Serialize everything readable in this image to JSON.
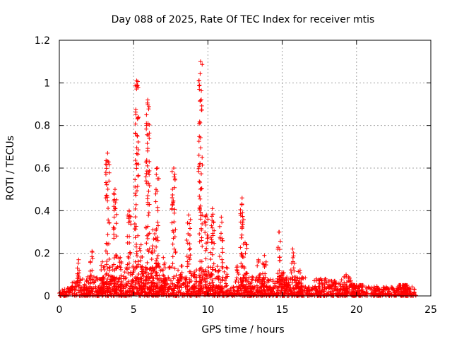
{
  "chart_data": {
    "type": "scatter",
    "title": "Day 088 of 2025, Rate Of TEC Index for receiver mtis",
    "xlabel": "GPS time / hours",
    "ylabel": "ROTI / TECUs",
    "xlim": [
      0,
      25
    ],
    "ylim": [
      0,
      1.2
    ],
    "xticks": [
      "0",
      "5",
      "10",
      "15",
      "20",
      "25"
    ],
    "yticks": [
      "0",
      "0.2",
      "0.4",
      "0.6",
      "0.8",
      "1",
      "1.2"
    ],
    "grid": true,
    "marker": "plus",
    "color": "#ff0000",
    "baseline_noise": {
      "x_range": [
        0,
        24
      ],
      "y_range": [
        0.0,
        0.045
      ]
    },
    "spikes": [
      {
        "x": 1.3,
        "peak": 0.17
      },
      {
        "x": 2.2,
        "peak": 0.21
      },
      {
        "x": 2.9,
        "peak": 0.16
      },
      {
        "x": 3.25,
        "peak": 0.67
      },
      {
        "x": 3.75,
        "peak": 0.5
      },
      {
        "x": 4.1,
        "peak": 0.18
      },
      {
        "x": 4.7,
        "peak": 0.4
      },
      {
        "x": 5.2,
        "peak": 1.01
      },
      {
        "x": 5.5,
        "peak": 0.24
      },
      {
        "x": 5.95,
        "peak": 0.92
      },
      {
        "x": 6.3,
        "peak": 0.31
      },
      {
        "x": 6.6,
        "peak": 0.6
      },
      {
        "x": 7.0,
        "peak": 0.18
      },
      {
        "x": 7.7,
        "peak": 0.6
      },
      {
        "x": 8.2,
        "peak": 0.14
      },
      {
        "x": 8.7,
        "peak": 0.38
      },
      {
        "x": 9.5,
        "peak": 1.1
      },
      {
        "x": 9.9,
        "peak": 0.38
      },
      {
        "x": 10.3,
        "peak": 0.41
      },
      {
        "x": 10.9,
        "peak": 0.37
      },
      {
        "x": 12.3,
        "peak": 0.46
      },
      {
        "x": 12.5,
        "peak": 0.25
      },
      {
        "x": 13.4,
        "peak": 0.17
      },
      {
        "x": 13.8,
        "peak": 0.19
      },
      {
        "x": 14.8,
        "peak": 0.3
      },
      {
        "x": 15.1,
        "peak": 0.11
      },
      {
        "x": 15.7,
        "peak": 0.22
      },
      {
        "x": 16.2,
        "peak": 0.12
      },
      {
        "x": 17.6,
        "peak": 0.08
      },
      {
        "x": 18.5,
        "peak": 0.07
      },
      {
        "x": 19.3,
        "peak": 0.1
      },
      {
        "x": 20.0,
        "peak": 0.05
      },
      {
        "x": 23.3,
        "peak": 0.05
      }
    ]
  }
}
